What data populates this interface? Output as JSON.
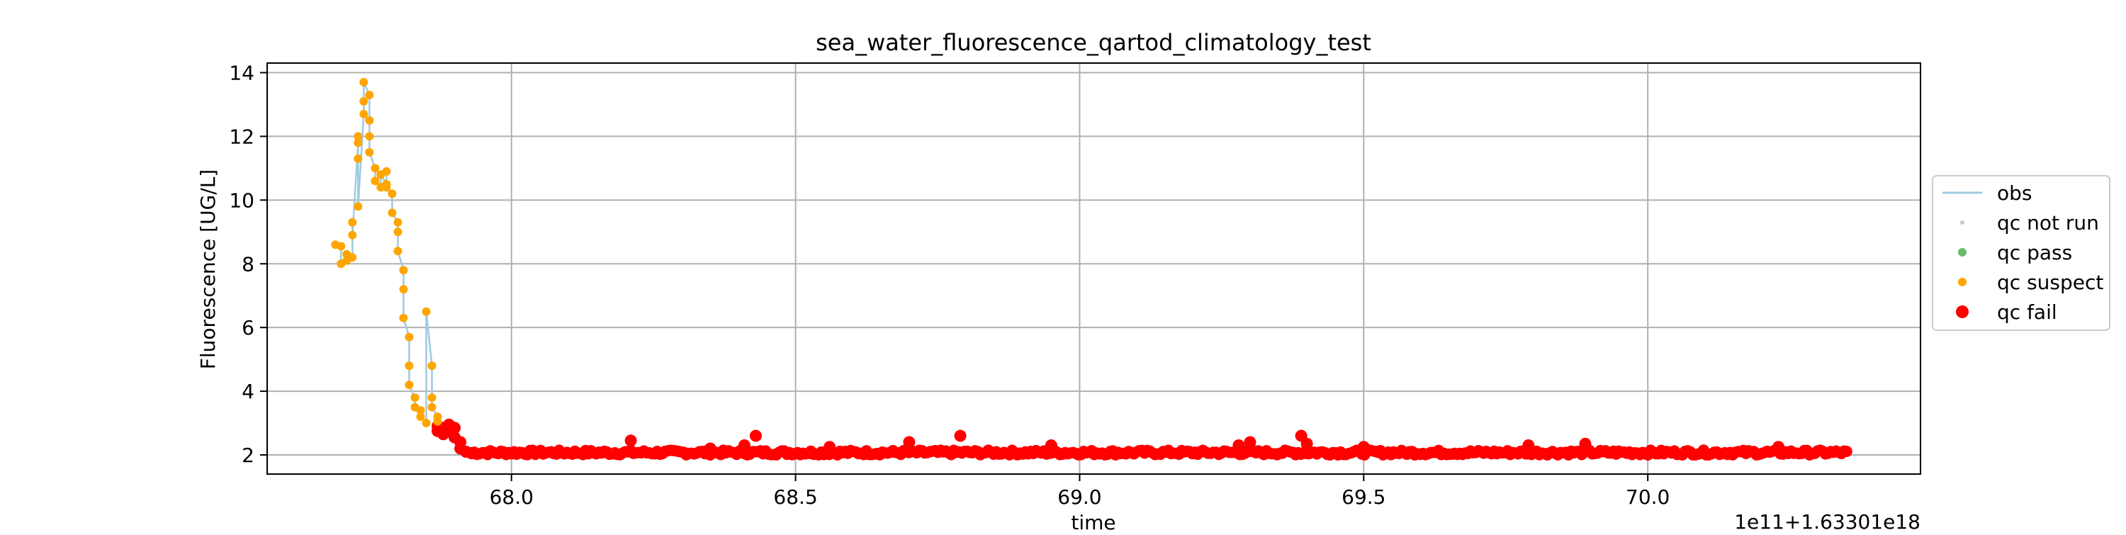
{
  "chart_data": {
    "type": "scatter",
    "title": "sea_water_fluorescence_qartod_climatology_test",
    "xlabel": "time",
    "ylabel": "Fluorescence [UG/L]",
    "offset_text": "1e11+1.63301e18",
    "xlim": [
      67.57,
      70.48
    ],
    "ylim": [
      1.4,
      14.3
    ],
    "xticks": [
      68.0,
      68.5,
      69.0,
      69.5,
      70.0
    ],
    "xtick_labels": [
      "68.0",
      "68.5",
      "69.0",
      "69.5",
      "70.0"
    ],
    "yticks": [
      2,
      4,
      6,
      8,
      10,
      12,
      14
    ],
    "ytick_labels": [
      "2",
      "4",
      "6",
      "8",
      "10",
      "12",
      "14"
    ],
    "grid": true,
    "legend_position": "right, outside plot",
    "legend": [
      {
        "label": "obs",
        "marker": "line",
        "color": "#9ecae1"
      },
      {
        "label": "qc not run",
        "marker": "dot",
        "color": "#c8c8c8"
      },
      {
        "label": "qc pass",
        "marker": "dot",
        "color": "#2ca02c"
      },
      {
        "label": "qc suspect",
        "marker": "dot",
        "color": "#ffa500"
      },
      {
        "label": "qc fail",
        "marker": "dot",
        "color": "#ff0000"
      }
    ],
    "series": [
      {
        "name": "qc suspect",
        "color": "#ffa500",
        "points": [
          [
            67.69,
            8.6
          ],
          [
            67.7,
            8.55
          ],
          [
            67.7,
            8.0
          ],
          [
            67.71,
            8.3
          ],
          [
            67.71,
            8.1
          ],
          [
            67.72,
            8.2
          ],
          [
            67.72,
            9.3
          ],
          [
            67.72,
            8.9
          ],
          [
            67.73,
            11.8
          ],
          [
            67.73,
            12.0
          ],
          [
            67.73,
            11.3
          ],
          [
            67.73,
            9.8
          ],
          [
            67.74,
            12.7
          ],
          [
            67.74,
            13.1
          ],
          [
            67.74,
            13.7
          ],
          [
            67.75,
            13.3
          ],
          [
            67.75,
            12.5
          ],
          [
            67.75,
            12.0
          ],
          [
            67.75,
            11.5
          ],
          [
            67.76,
            11.0
          ],
          [
            67.76,
            10.6
          ],
          [
            67.77,
            10.4
          ],
          [
            67.77,
            10.8
          ],
          [
            67.78,
            10.5
          ],
          [
            67.78,
            10.9
          ],
          [
            67.78,
            10.4
          ],
          [
            67.79,
            10.2
          ],
          [
            67.79,
            9.6
          ],
          [
            67.8,
            9.3
          ],
          [
            67.8,
            9.0
          ],
          [
            67.8,
            8.4
          ],
          [
            67.81,
            7.8
          ],
          [
            67.81,
            7.2
          ],
          [
            67.81,
            6.3
          ],
          [
            67.82,
            5.7
          ],
          [
            67.82,
            4.8
          ],
          [
            67.82,
            4.2
          ],
          [
            67.83,
            3.8
          ],
          [
            67.83,
            3.5
          ],
          [
            67.84,
            3.4
          ],
          [
            67.84,
            3.2
          ],
          [
            67.85,
            3.0
          ],
          [
            67.85,
            6.5
          ],
          [
            67.86,
            4.8
          ],
          [
            67.86,
            3.8
          ],
          [
            67.86,
            3.5
          ],
          [
            67.87,
            3.2
          ],
          [
            67.87,
            3.05
          ]
        ]
      },
      {
        "name": "qc fail",
        "color": "#ff0000",
        "points": [
          [
            67.87,
            2.9
          ],
          [
            67.87,
            2.75
          ],
          [
            67.88,
            2.85
          ],
          [
            67.88,
            2.65
          ],
          [
            67.89,
            2.75
          ],
          [
            67.89,
            2.95
          ],
          [
            67.9,
            2.55
          ],
          [
            67.9,
            2.85
          ],
          [
            67.91,
            2.4
          ],
          [
            67.91,
            2.2
          ],
          [
            67.92,
            2.1
          ],
          [
            67.93,
            2.05
          ],
          [
            68.21,
            2.45
          ],
          [
            68.35,
            2.2
          ],
          [
            68.43,
            2.6
          ],
          [
            68.41,
            2.3
          ],
          [
            68.56,
            2.25
          ],
          [
            68.7,
            2.4
          ],
          [
            68.79,
            2.6
          ],
          [
            68.95,
            2.3
          ],
          [
            69.3,
            2.4
          ],
          [
            69.28,
            2.3
          ],
          [
            69.39,
            2.6
          ],
          [
            69.4,
            2.35
          ],
          [
            69.5,
            2.25
          ],
          [
            69.79,
            2.3
          ],
          [
            69.89,
            2.35
          ],
          [
            70.23,
            2.25
          ]
        ],
        "band": {
          "x_start": 67.93,
          "x_end": 70.35,
          "y_min": 1.95,
          "y_max": 2.2
        }
      }
    ]
  }
}
